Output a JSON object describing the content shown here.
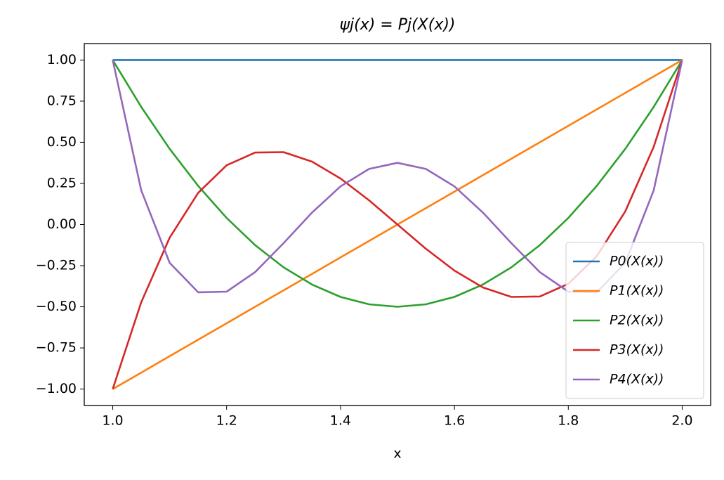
{
  "chart_data": {
    "type": "line",
    "title": "ψj(x) = Pj(X(x))",
    "x_label": "x",
    "x": [
      1.0,
      1.05,
      1.1,
      1.15,
      1.2,
      1.25,
      1.3,
      1.35,
      1.4,
      1.45,
      1.5,
      1.55,
      1.6,
      1.65,
      1.7,
      1.75,
      1.8,
      1.85,
      1.9,
      1.95,
      2.0
    ],
    "series": [
      {
        "name": "P0(X(x))",
        "color": "#1f77b4",
        "values": [
          1,
          1,
          1,
          1,
          1,
          1,
          1,
          1,
          1,
          1,
          1,
          1,
          1,
          1,
          1,
          1,
          1,
          1,
          1,
          1,
          1
        ]
      },
      {
        "name": "P1(X(x))",
        "color": "#ff7f0e",
        "values": [
          -1,
          -0.9,
          -0.8,
          -0.7,
          -0.6,
          -0.5,
          -0.4,
          -0.3,
          -0.2,
          -0.1,
          0,
          0.1,
          0.2,
          0.3,
          0.4,
          0.5,
          0.6,
          0.7,
          0.8,
          0.9,
          1
        ]
      },
      {
        "name": "P2(X(x))",
        "color": "#2ca02c",
        "values": [
          1,
          0.715,
          0.46,
          0.235,
          0.04,
          -0.125,
          -0.26,
          -0.365,
          -0.44,
          -0.485,
          -0.5,
          -0.485,
          -0.44,
          -0.365,
          -0.26,
          -0.125,
          0.04,
          0.235,
          0.46,
          0.715,
          1
        ]
      },
      {
        "name": "P3(X(x))",
        "color": "#d62728",
        "values": [
          -1,
          -0.4725,
          -0.08,
          0.1925,
          0.36,
          0.4375,
          0.44,
          0.3825,
          0.28,
          0.1475,
          0,
          -0.1475,
          -0.28,
          -0.3825,
          -0.44,
          -0.4375,
          -0.36,
          -0.1925,
          0.08,
          0.4725,
          1
        ]
      },
      {
        "name": "P4(X(x))",
        "color": "#9467bd",
        "values": [
          1,
          0.208,
          -0.233,
          -0.412,
          -0.408,
          -0.289,
          -0.113,
          0.073,
          0.232,
          0.338,
          0.375,
          0.338,
          0.232,
          0.073,
          -0.113,
          -0.289,
          -0.408,
          -0.412,
          -0.233,
          0.208,
          1
        ]
      }
    ],
    "xlim": [
      0.95,
      2.05
    ],
    "xticks": [
      {
        "value": 1,
        "label": "1.0"
      },
      1.2,
      1.4,
      1.6,
      1.8,
      {
        "value": 2,
        "label": "2.0"
      }
    ],
    "ylim": [
      -1.1,
      1.1
    ],
    "yticks": [
      {
        "value": -1,
        "label": "−1.00"
      },
      {
        "value": -0.75,
        "label": "−0.75"
      },
      {
        "value": -0.5,
        "label": "−0.50"
      },
      {
        "value": -0.25,
        "label": "−0.25"
      },
      {
        "value": 0,
        "label": "0.00"
      },
      {
        "value": 0.25,
        "label": "0.25"
      },
      {
        "value": 0.5,
        "label": "0.50"
      },
      {
        "value": 0.75,
        "label": "0.75"
      },
      {
        "value": 1,
        "label": "1.00"
      }
    ],
    "legend": "lower right",
    "grid": false
  }
}
